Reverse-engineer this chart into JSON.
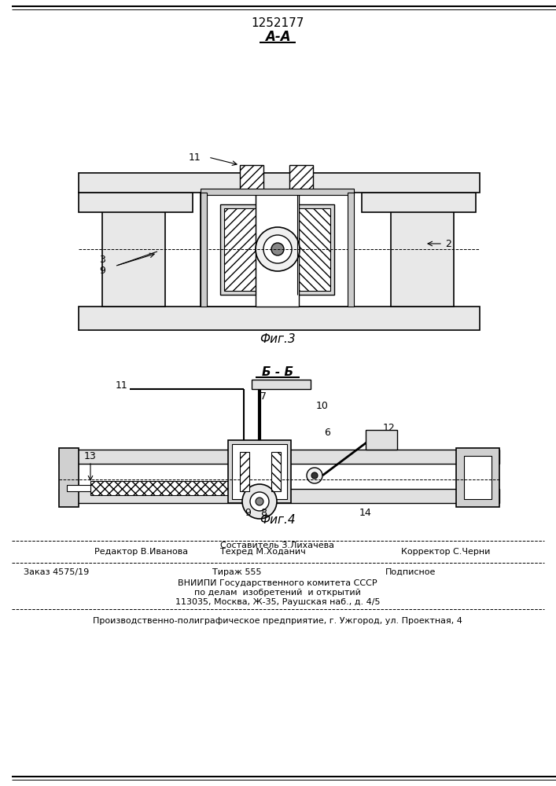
{
  "title_number": "1252177",
  "section_aa": "А-А",
  "section_bb": "Б - Б",
  "fig3_label": "Фиг.3",
  "fig4_label": "Фиг.4",
  "editor_line": "Редактор В.Иванова",
  "compiler_line": "Составитель З.Лихачева",
  "techred_line": "Техред М.Ходанич",
  "corrector_line": "Корректор С.Черни",
  "order_line": "Заказ 4575/19",
  "tirazh_line": "Тираж 555",
  "podpisnoe_line": "Подписное",
  "vniipи_line": "ВНИИПИ Государственного комитета СССР",
  "dela_line": "по делам  изобретений  и открытий",
  "address_line": "113035, Москва, Ж-35, Раушская наб., д. 4/5",
  "factory_line": "Производственно-полиграфическое предприятие, г. Ужгород, ул. Проектная, 4",
  "bg_color": "#ffffff",
  "line_color": "#000000"
}
